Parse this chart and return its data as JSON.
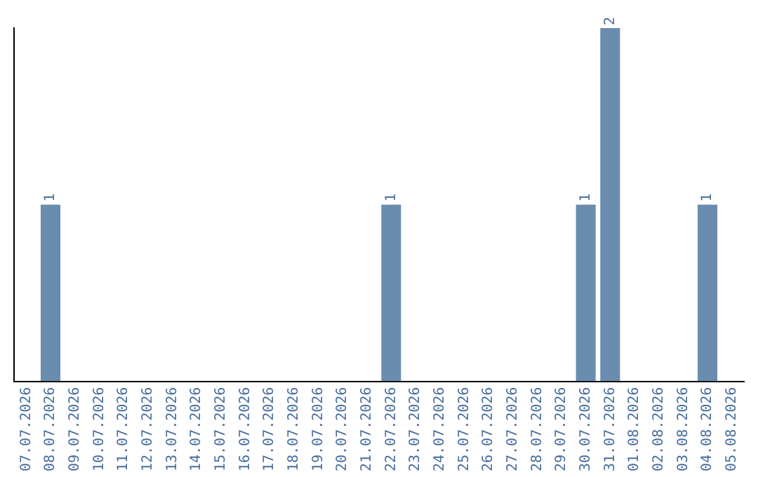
{
  "chart_data": {
    "type": "bar",
    "categories": [
      "07.07.2026",
      "08.07.2026",
      "09.07.2026",
      "10.07.2026",
      "11.07.2026",
      "12.07.2026",
      "13.07.2026",
      "14.07.2026",
      "15.07.2026",
      "16.07.2026",
      "17.07.2026",
      "18.07.2026",
      "19.07.2026",
      "20.07.2026",
      "21.07.2026",
      "22.07.2026",
      "23.07.2026",
      "24.07.2026",
      "25.07.2026",
      "26.07.2026",
      "27.07.2026",
      "28.07.2026",
      "29.07.2026",
      "30.07.2026",
      "31.07.2026",
      "01.08.2026",
      "02.08.2026",
      "03.08.2026",
      "04.08.2026",
      "05.08.2026"
    ],
    "values": [
      0,
      1,
      0,
      0,
      0,
      0,
      0,
      0,
      0,
      0,
      0,
      0,
      0,
      0,
      0,
      1,
      0,
      0,
      0,
      0,
      0,
      0,
      0,
      1,
      2,
      0,
      0,
      0,
      1,
      0
    ],
    "value_labels": [
      null,
      "1",
      null,
      null,
      null,
      null,
      null,
      null,
      null,
      null,
      null,
      null,
      null,
      null,
      null,
      "1",
      null,
      null,
      null,
      null,
      null,
      null,
      null,
      "1",
      "2",
      null,
      null,
      null,
      "1",
      null
    ],
    "color": "#6a8caf",
    "grid": false,
    "legend": false,
    "tick_labels": "x"
  }
}
